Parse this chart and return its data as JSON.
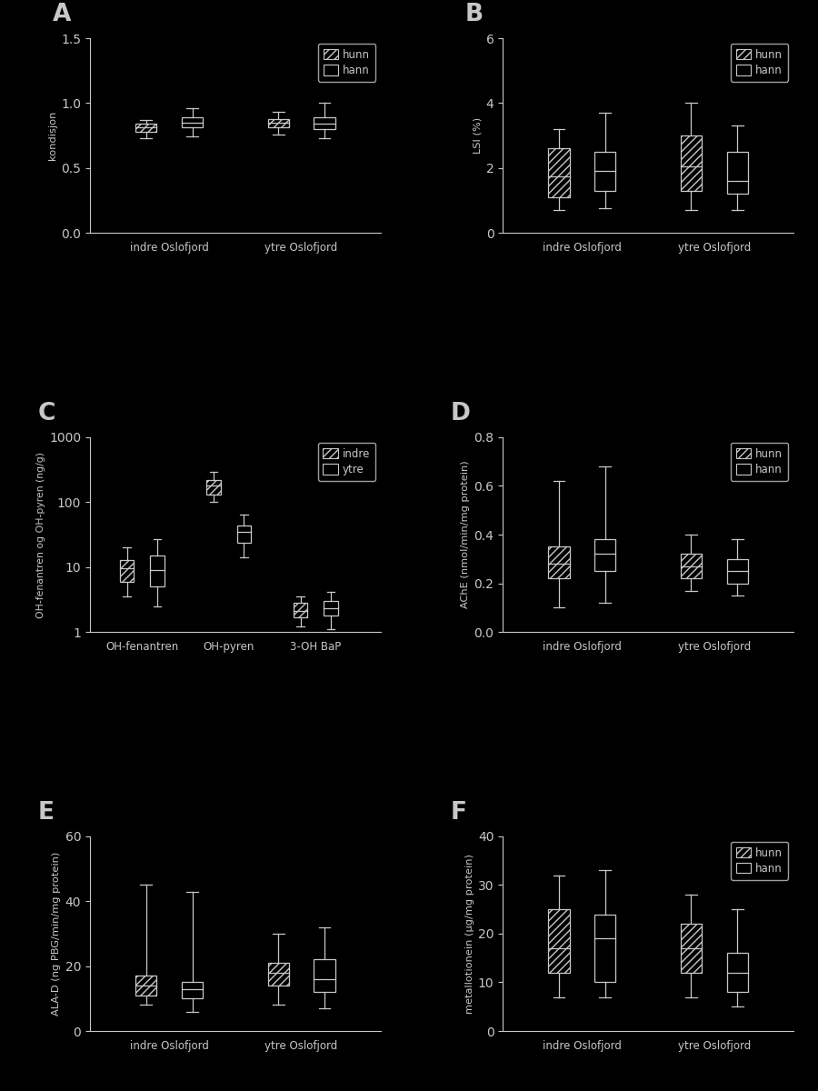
{
  "bg_color": "#000000",
  "fg_color": "#c8c8c8",
  "panel_labels": [
    "A",
    "B",
    "C",
    "D",
    "E",
    "F"
  ],
  "A": {
    "ylabel": "kondisjon",
    "ylim": [
      0.0,
      1.5
    ],
    "yticks": [
      0.0,
      0.5,
      1.0,
      1.5
    ],
    "xtick_labels": [
      "indre Oslofjord",
      "ytre Oslofjord"
    ],
    "legend_labels": [
      "hunn",
      "hann"
    ],
    "legend_hatch": [
      "////",
      ""
    ],
    "groups": [
      {
        "label": "indre Oslofjord",
        "hunn": {
          "med": 0.81,
          "q1": 0.78,
          "q3": 0.84,
          "whislo": 0.73,
          "whishi": 0.87
        },
        "hann": {
          "med": 0.85,
          "q1": 0.81,
          "q3": 0.89,
          "whislo": 0.74,
          "whishi": 0.96
        }
      },
      {
        "label": "ytre Oslofjord",
        "hunn": {
          "med": 0.85,
          "q1": 0.81,
          "q3": 0.88,
          "whislo": 0.76,
          "whishi": 0.93
        },
        "hann": {
          "med": 0.84,
          "q1": 0.8,
          "q3": 0.89,
          "whislo": 0.73,
          "whishi": 1.0
        }
      }
    ]
  },
  "B": {
    "ylabel": "LSI (%)",
    "ylim": [
      0,
      6
    ],
    "yticks": [
      0,
      2,
      4,
      6
    ],
    "xtick_labels": [
      "indre Oslofjord",
      "ytre Oslofjord"
    ],
    "legend_labels": [
      "hunn",
      "hann"
    ],
    "legend_hatch": [
      "////",
      ""
    ],
    "groups": [
      {
        "label": "indre Oslofjord",
        "hunn": {
          "med": 1.75,
          "q1": 1.1,
          "q3": 2.6,
          "whislo": 0.7,
          "whishi": 3.2
        },
        "hann": {
          "med": 1.9,
          "q1": 1.3,
          "q3": 2.5,
          "whislo": 0.75,
          "whishi": 3.7
        }
      },
      {
        "label": "ytre Oslofjord",
        "hunn": {
          "med": 2.05,
          "q1": 1.3,
          "q3": 3.0,
          "whislo": 0.7,
          "whishi": 4.0
        },
        "hann": {
          "med": 1.6,
          "q1": 1.2,
          "q3": 2.5,
          "whislo": 0.7,
          "whishi": 3.3
        }
      }
    ]
  },
  "C": {
    "ylabel": "OH-fenantren og OH-pyren (ng/g)",
    "ylim_log": [
      1,
      1000
    ],
    "yticks_log": [
      1,
      10,
      100,
      1000
    ],
    "xtick_labels": [
      "OH-fenantren",
      "OH-pyren",
      "3-OH BaP"
    ],
    "legend_labels": [
      "indre",
      "ytre"
    ],
    "legend_hatch": [
      "////",
      ""
    ],
    "groups": [
      {
        "label": "OH-fenantren",
        "indre": {
          "med": 9.5,
          "q1": 6.0,
          "q3": 13,
          "whislo": 3.5,
          "whishi": 20
        },
        "ytre": {
          "med": 9.0,
          "q1": 5.0,
          "q3": 15,
          "whislo": 2.5,
          "whishi": 27
        }
      },
      {
        "label": "OH-pyren",
        "indre": {
          "med": 180,
          "q1": 130,
          "q3": 220,
          "whislo": 100,
          "whishi": 290
        },
        "ytre": {
          "med": 35,
          "q1": 24,
          "q3": 43,
          "whislo": 14,
          "whishi": 65
        }
      },
      {
        "label": "3-OH BaP",
        "indre": {
          "med": 2.1,
          "q1": 1.7,
          "q3": 2.8,
          "whislo": 1.2,
          "whishi": 3.5
        },
        "ytre": {
          "med": 2.3,
          "q1": 1.8,
          "q3": 3.0,
          "whislo": 1.1,
          "whishi": 4.2
        }
      }
    ]
  },
  "D": {
    "ylabel": "AChE (nmol/min/mg protein)",
    "ylim": [
      0.0,
      0.8
    ],
    "yticks": [
      0.0,
      0.2,
      0.4,
      0.6,
      0.8
    ],
    "xtick_labels": [
      "indre Oslofjord",
      "ytre Oslofjord"
    ],
    "legend_labels": [
      "hunn",
      "hann"
    ],
    "legend_hatch": [
      "////",
      ""
    ],
    "groups": [
      {
        "label": "indre Oslofjord",
        "hunn": {
          "med": 0.28,
          "q1": 0.22,
          "q3": 0.35,
          "whislo": 0.1,
          "whishi": 0.62
        },
        "hann": {
          "med": 0.32,
          "q1": 0.25,
          "q3": 0.38,
          "whislo": 0.12,
          "whishi": 0.68
        }
      },
      {
        "label": "ytre Oslofjord",
        "hunn": {
          "med": 0.27,
          "q1": 0.22,
          "q3": 0.32,
          "whislo": 0.17,
          "whishi": 0.4
        },
        "hann": {
          "med": 0.25,
          "q1": 0.2,
          "q3": 0.3,
          "whislo": 0.15,
          "whishi": 0.38
        }
      }
    ]
  },
  "E": {
    "ylabel": "ALA-D (ng PBG/min/mg protein)",
    "ylim": [
      0,
      60
    ],
    "yticks": [
      0,
      20,
      40,
      60
    ],
    "xtick_labels": [
      "indre Oslofjord",
      "ytre Oslofjord"
    ],
    "legend_labels": [
      "hunn",
      "hann"
    ],
    "legend_hatch": [
      "////",
      ""
    ],
    "groups": [
      {
        "label": "indre Oslofjord",
        "hunn": {
          "med": 14,
          "q1": 11,
          "q3": 17,
          "whislo": 8,
          "whishi": 45
        },
        "hann": {
          "med": 13,
          "q1": 10,
          "q3": 15,
          "whislo": 6,
          "whishi": 43
        }
      },
      {
        "label": "ytre Oslofjord",
        "hunn": {
          "med": 18,
          "q1": 14,
          "q3": 21,
          "whislo": 8,
          "whishi": 30
        },
        "hann": {
          "med": 16,
          "q1": 12,
          "q3": 22,
          "whislo": 7,
          "whishi": 32
        }
      }
    ]
  },
  "F": {
    "ylabel": "metallotionein (µg/mg protein)",
    "ylim": [
      0,
      40
    ],
    "yticks": [
      0,
      10,
      20,
      30,
      40
    ],
    "xtick_labels": [
      "indre Oslofjord",
      "ytre Oslofjord"
    ],
    "legend_labels": [
      "hunn",
      "hann"
    ],
    "legend_hatch": [
      "////",
      ""
    ],
    "groups": [
      {
        "label": "indre Oslofjord",
        "hunn": {
          "med": 17,
          "q1": 12,
          "q3": 25,
          "whislo": 7,
          "whishi": 32
        },
        "hann": {
          "med": 19,
          "q1": 10,
          "q3": 24,
          "whislo": 7,
          "whishi": 33
        }
      },
      {
        "label": "ytre Oslofjord",
        "hunn": {
          "med": 17,
          "q1": 12,
          "q3": 22,
          "whislo": 7,
          "whishi": 28
        },
        "hann": {
          "med": 12,
          "q1": 8,
          "q3": 16,
          "whislo": 5,
          "whishi": 25
        }
      }
    ]
  }
}
